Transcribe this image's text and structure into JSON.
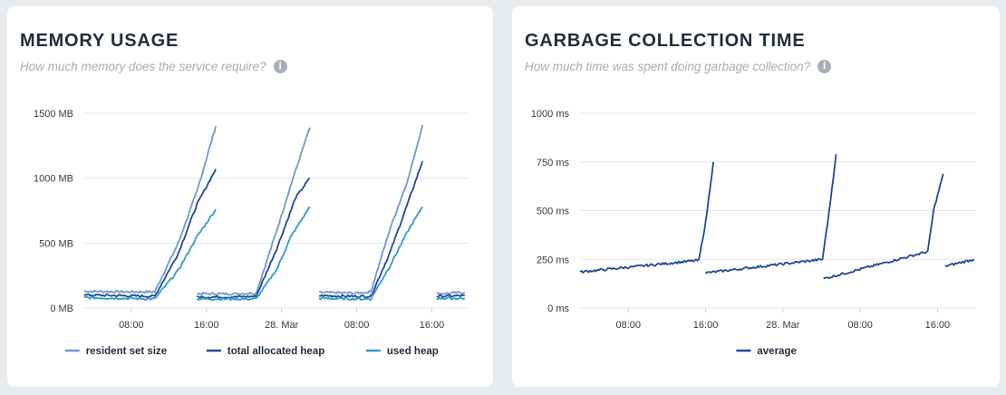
{
  "panels": [
    {
      "title": "MEMORY USAGE",
      "subtitle": "How much memory does the service require?",
      "info_icon": "info-icon"
    },
    {
      "title": "GARBAGE COLLECTION TIME",
      "subtitle": "How much time was spent doing garbage collection?",
      "info_icon": "info-icon"
    }
  ],
  "chart_data": [
    {
      "type": "line",
      "ylim": [
        0,
        1500
      ],
      "y_ticks": [
        "0 MB",
        "500 MB",
        "1000 MB",
        "1500 MB"
      ],
      "y_tick_values": [
        0,
        500,
        1000,
        1500
      ],
      "x_ticks": [
        "08:00",
        "16:00",
        "28. Mar",
        "08:00",
        "16:00"
      ],
      "x_tick_values": [
        8,
        16,
        24,
        32,
        40
      ],
      "x_range": [
        3,
        44
      ],
      "grid": true,
      "legend_position": "bottom-center",
      "series": [
        {
          "name": "resident set size",
          "color": "#6f98cd",
          "segments": [
            [
              [
                3,
                130
              ],
              [
                7,
                125
              ],
              [
                10.5,
                125
              ],
              [
                13,
                500
              ],
              [
                15,
                900
              ],
              [
                17,
                1400
              ]
            ],
            [
              [
                15,
                110
              ],
              [
                19,
                110
              ],
              [
                21.3,
                115
              ],
              [
                23.5,
                600
              ],
              [
                25,
                950
              ],
              [
                27,
                1390
              ]
            ],
            [
              [
                28,
                120
              ],
              [
                32,
                115
              ],
              [
                33.5,
                125
              ],
              [
                35.5,
                600
              ],
              [
                37.5,
                1000
              ],
              [
                39,
                1410
              ]
            ],
            [
              [
                40.5,
                110
              ],
              [
                43.5,
                120
              ]
            ]
          ]
        },
        {
          "name": "total allocated heap",
          "color": "#1d4a95",
          "segments": [
            [
              [
                3,
                100
              ],
              [
                7,
                95
              ],
              [
                10.5,
                90
              ],
              [
                13,
                420
              ],
              [
                15,
                800
              ],
              [
                17,
                1070
              ]
            ],
            [
              [
                15,
                85
              ],
              [
                19,
                85
              ],
              [
                21.3,
                90
              ],
              [
                23.5,
                460
              ],
              [
                25.5,
                850
              ],
              [
                27,
                1000
              ]
            ],
            [
              [
                28,
                95
              ],
              [
                32,
                90
              ],
              [
                33.5,
                90
              ],
              [
                35.5,
                420
              ],
              [
                37.5,
                820
              ],
              [
                39,
                1130
              ]
            ],
            [
              [
                40.5,
                90
              ],
              [
                43.5,
                95
              ]
            ]
          ]
        },
        {
          "name": "used heap",
          "color": "#3499cc",
          "segments": [
            [
              [
                3,
                80
              ],
              [
                7,
                75
              ],
              [
                10.5,
                70
              ],
              [
                13,
                290
              ],
              [
                15,
                550
              ],
              [
                17,
                760
              ]
            ],
            [
              [
                15,
                70
              ],
              [
                19,
                70
              ],
              [
                21.3,
                70
              ],
              [
                23.5,
                300
              ],
              [
                25,
                550
              ],
              [
                27,
                780
              ]
            ],
            [
              [
                28,
                75
              ],
              [
                32,
                70
              ],
              [
                33.5,
                70
              ],
              [
                35.5,
                320
              ],
              [
                37.5,
                600
              ],
              [
                39,
                780
              ]
            ],
            [
              [
                40.5,
                75
              ],
              [
                43.5,
                75
              ]
            ]
          ]
        }
      ]
    },
    {
      "type": "line",
      "ylim": [
        0,
        1000
      ],
      "y_ticks": [
        "0 ms",
        "250 ms",
        "500 ms",
        "750 ms",
        "1000 ms"
      ],
      "y_tick_values": [
        0,
        250,
        500,
        750,
        1000
      ],
      "x_ticks": [
        "08:00",
        "16:00",
        "28. Mar",
        "08:00",
        "16:00"
      ],
      "x_tick_values": [
        8,
        16,
        24,
        32,
        40
      ],
      "x_range": [
        3,
        44
      ],
      "grid": true,
      "legend_position": "bottom-center",
      "series": [
        {
          "name": "average",
          "color": "#1d4a95",
          "segments": [
            [
              [
                3,
                185
              ],
              [
                15.3,
                245
              ],
              [
                16,
                440
              ],
              [
                16.8,
                750
              ]
            ],
            [
              [
                16,
                180
              ],
              [
                28.1,
                250
              ],
              [
                28.8,
                500
              ],
              [
                29.5,
                790
              ]
            ],
            [
              [
                28.2,
                150
              ],
              [
                39,
                290
              ],
              [
                39.6,
                500
              ],
              [
                40.6,
                690
              ]
            ],
            [
              [
                40.8,
                215
              ],
              [
                43.8,
                250
              ]
            ]
          ]
        }
      ]
    }
  ]
}
